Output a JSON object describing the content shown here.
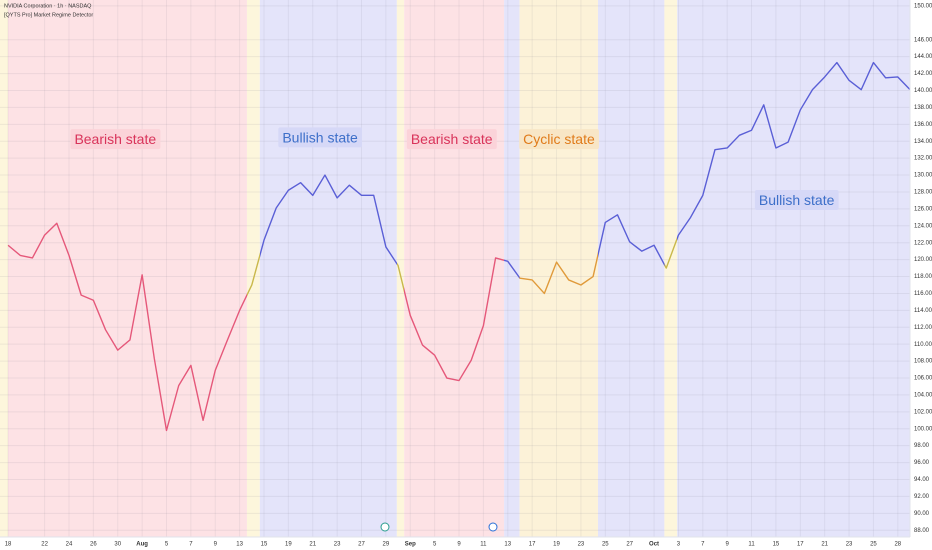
{
  "header": {
    "symbol": "NVIDIA Corporation · 1h · NASDAQ",
    "indicator": "[QYTS Pro] Market Regime Detector"
  },
  "chart_data": {
    "type": "line",
    "values": [
      121.7,
      120.5,
      120.2,
      122.9,
      124.3,
      120.5,
      115.8,
      115.2,
      111.7,
      109.3,
      110.5,
      118.2,
      108.3,
      99.8,
      105.1,
      107.5,
      101.0,
      106.9,
      110.5,
      114.0,
      117.0,
      122.3,
      126.1,
      128.2,
      129.1,
      127.6,
      130.0,
      127.3,
      128.8,
      127.6,
      127.6,
      121.5,
      119.3,
      113.4,
      109.9,
      108.7,
      106.0,
      105.7,
      108.1,
      112.2,
      120.2,
      119.8,
      117.8,
      117.6,
      116.0,
      119.7,
      117.6,
      117.0,
      118.0,
      124.4,
      125.3,
      122.1,
      121.0,
      121.7,
      119.0,
      122.9,
      125.0,
      127.6,
      133.0,
      133.2,
      134.7,
      135.3,
      138.3,
      133.2,
      133.9,
      137.7,
      140.1,
      141.6,
      143.3,
      141.2,
      140.1,
      143.3,
      141.5,
      141.6,
      140.1
    ],
    "xlim": [
      -0.66,
      74
    ],
    "xticks": [
      {
        "value": 0,
        "label": "18"
      },
      {
        "value": 3,
        "label": "22"
      },
      {
        "value": 5,
        "label": "24"
      },
      {
        "value": 7,
        "label": "26"
      },
      {
        "value": 9,
        "label": "30"
      },
      {
        "value": 11,
        "label": "Aug"
      },
      {
        "value": 13,
        "label": "5"
      },
      {
        "value": 15,
        "label": "7"
      },
      {
        "value": 17,
        "label": "9"
      },
      {
        "value": 19,
        "label": "13"
      },
      {
        "value": 21,
        "label": "15"
      },
      {
        "value": 23,
        "label": "19"
      },
      {
        "value": 25,
        "label": "21"
      },
      {
        "value": 27,
        "label": "23"
      },
      {
        "value": 29,
        "label": "27"
      },
      {
        "value": 31,
        "label": "29"
      },
      {
        "value": 33,
        "label": "Sep"
      },
      {
        "value": 35,
        "label": "5"
      },
      {
        "value": 37,
        "label": "9"
      },
      {
        "value": 39,
        "label": "11"
      },
      {
        "value": 41,
        "label": "13"
      },
      {
        "value": 43,
        "label": "17"
      },
      {
        "value": 45,
        "label": "19"
      },
      {
        "value": 47,
        "label": "23"
      },
      {
        "value": 49,
        "label": "25"
      },
      {
        "value": 51,
        "label": "27"
      },
      {
        "value": 53,
        "label": "Oct"
      },
      {
        "value": 55,
        "label": "3"
      },
      {
        "value": 57,
        "label": "7"
      },
      {
        "value": 59,
        "label": "9"
      },
      {
        "value": 61,
        "label": "11"
      },
      {
        "value": 63,
        "label": "15"
      },
      {
        "value": 65,
        "label": "17"
      },
      {
        "value": 67,
        "label": "21"
      },
      {
        "value": 69,
        "label": "23"
      },
      {
        "value": 71,
        "label": "25"
      },
      {
        "value": 73,
        "label": "28"
      }
    ],
    "ylim": [
      87.2,
      150.7
    ],
    "yticks": [
      {
        "value": 150,
        "label": "150.00"
      },
      {
        "value": 146,
        "label": "146.00"
      },
      {
        "value": 144,
        "label": "144.00"
      },
      {
        "value": 142,
        "label": "142.00"
      },
      {
        "value": 140,
        "label": "140.00"
      },
      {
        "value": 138,
        "label": "138.00"
      },
      {
        "value": 136,
        "label": "136.00"
      },
      {
        "value": 134,
        "label": "134.00"
      },
      {
        "value": 132,
        "label": "132.00"
      },
      {
        "value": 130,
        "label": "130.00"
      },
      {
        "value": 128,
        "label": "128.00"
      },
      {
        "value": 126,
        "label": "126.00"
      },
      {
        "value": 124,
        "label": "124.00"
      },
      {
        "value": 122,
        "label": "122.00"
      },
      {
        "value": 120,
        "label": "120.00"
      },
      {
        "value": 118,
        "label": "118.00"
      },
      {
        "value": 116,
        "label": "116.00"
      },
      {
        "value": 114,
        "label": "114.00"
      },
      {
        "value": 112,
        "label": "112.00"
      },
      {
        "value": 110,
        "label": "110.00"
      },
      {
        "value": 108,
        "label": "108.00"
      },
      {
        "value": 106,
        "label": "106.00"
      },
      {
        "value": 104,
        "label": "104.00"
      },
      {
        "value": 102,
        "label": "102.00"
      },
      {
        "value": 100,
        "label": "100.00"
      },
      {
        "value": 98,
        "label": "98.00"
      },
      {
        "value": 96,
        "label": "96.00"
      },
      {
        "value": 94,
        "label": "94.00"
      },
      {
        "value": 92,
        "label": "92.00"
      },
      {
        "value": 90,
        "label": "90.00"
      },
      {
        "value": 88,
        "label": "88.00"
      }
    ],
    "grid": true,
    "regimes": [
      {
        "start": -0.66,
        "end": 0,
        "color": "#fdf6dc",
        "line_color": "#c9b84a"
      },
      {
        "start": 0,
        "end": 19.6,
        "color": "#fde2e5",
        "line_color": "#e5587a"
      },
      {
        "start": 19.6,
        "end": 20.66,
        "color": "#fdf6dc",
        "line_color": "#c9b84a"
      },
      {
        "start": 20.66,
        "end": 31.9,
        "color": "#e4e4fa",
        "line_color": "#5a5fd6"
      },
      {
        "start": 31.9,
        "end": 32.5,
        "color": "#fdf6dc",
        "line_color": "#c9b84a"
      },
      {
        "start": 32.5,
        "end": 40.7,
        "color": "#fde2e5",
        "line_color": "#e5587a"
      },
      {
        "start": 40.7,
        "end": 41.97,
        "color": "#e4e4fa",
        "line_color": "#5a5fd6"
      },
      {
        "start": 41.97,
        "end": 48.4,
        "color": "#fcf2d8",
        "line_color": "#e09a3a"
      },
      {
        "start": 48.4,
        "end": 53.85,
        "color": "#e4e4fa",
        "line_color": "#5a5fd6"
      },
      {
        "start": 53.85,
        "end": 54.9,
        "color": "#fdf6dc",
        "line_color": "#c9b84a"
      },
      {
        "start": 54.9,
        "end": 74,
        "color": "#e4e4fa",
        "line_color": "#5a5fd6"
      }
    ],
    "annotations": [
      {
        "text": "Bearish state",
        "x": 8.8,
        "y": 134.1,
        "color": "#d9335a",
        "background": "#fbd3d9"
      },
      {
        "text": "Bullish state",
        "x": 25.6,
        "y": 134.3,
        "color": "#3d6fc9",
        "background": "#d6d8f7"
      },
      {
        "text": "Bearish state",
        "x": 36.4,
        "y": 134.1,
        "color": "#d9335a",
        "background": "#fbd3d9"
      },
      {
        "text": "Cyclic state",
        "x": 45.2,
        "y": 134.1,
        "color": "#e07b1a",
        "background": "#f8e6c6"
      },
      {
        "text": "Bullish state",
        "x": 64.7,
        "y": 126.9,
        "color": "#3d6fc9",
        "background": "#d6d8f7"
      }
    ]
  }
}
